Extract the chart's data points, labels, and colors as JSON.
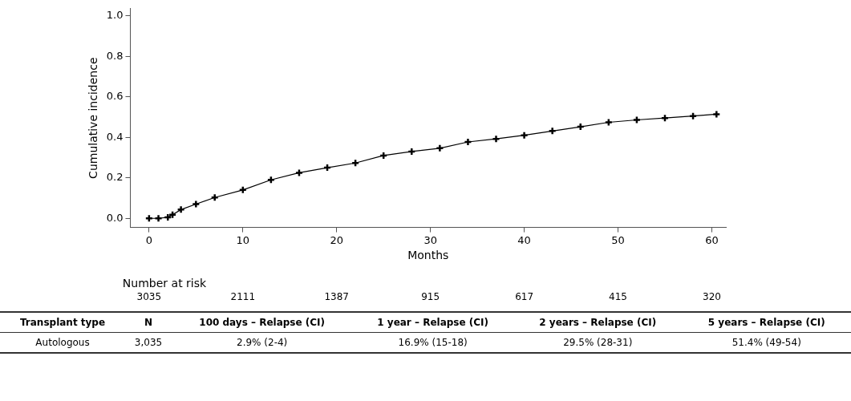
{
  "chart_data": {
    "type": "line",
    "xlabel": "Months",
    "ylabel": "Cumulative incidence",
    "x": [
      0,
      1,
      2,
      2.5,
      3.4,
      5,
      7,
      10,
      13,
      16,
      19,
      22,
      25,
      28,
      31,
      34,
      37,
      40,
      43,
      46,
      49,
      52,
      55,
      58,
      60.5
    ],
    "series": [
      {
        "color": "#000000",
        "values": [
          0,
          0,
          0.005,
          0.018,
          0.043,
          0.07,
          0.103,
          0.14,
          0.19,
          0.225,
          0.25,
          0.273,
          0.31,
          0.33,
          0.346,
          0.377,
          0.392,
          0.41,
          0.431,
          0.452,
          0.474,
          0.486,
          0.495,
          0.505,
          0.514
        ]
      }
    ],
    "xlim": [
      -2,
      61.5
    ],
    "xticks": [
      0,
      10,
      20,
      30,
      40,
      50,
      60
    ],
    "ylim": [
      -0.045,
      1.035
    ],
    "yticks": [
      {
        "value": 0,
        "label": "0.0"
      },
      {
        "value": 0.2,
        "label": "0.2"
      },
      {
        "value": 0.4,
        "label": "0.4"
      },
      {
        "value": 0.6,
        "label": "0.6"
      },
      {
        "value": 0.8,
        "label": "0.8"
      },
      {
        "value": 1,
        "label": "1.0"
      }
    ],
    "grid": false,
    "legend": false,
    "marker": "cross",
    "line_style": "solid",
    "annotations": [
      "Number at risk",
      "3035",
      "2111",
      "1387",
      "915",
      "617",
      "415",
      "320",
      "Transplant type",
      "N",
      "100 days – Relapse (CI)",
      "1 year – Relapse (CI)",
      "2 years – Relapse (CI)",
      "5 years – Relapse (CI)",
      "Autologous",
      "3,035",
      "2.9% (2-4)",
      "16.9% (15-18)",
      "29.5% (28-31)",
      "51.4% (49-54)"
    ]
  }
}
